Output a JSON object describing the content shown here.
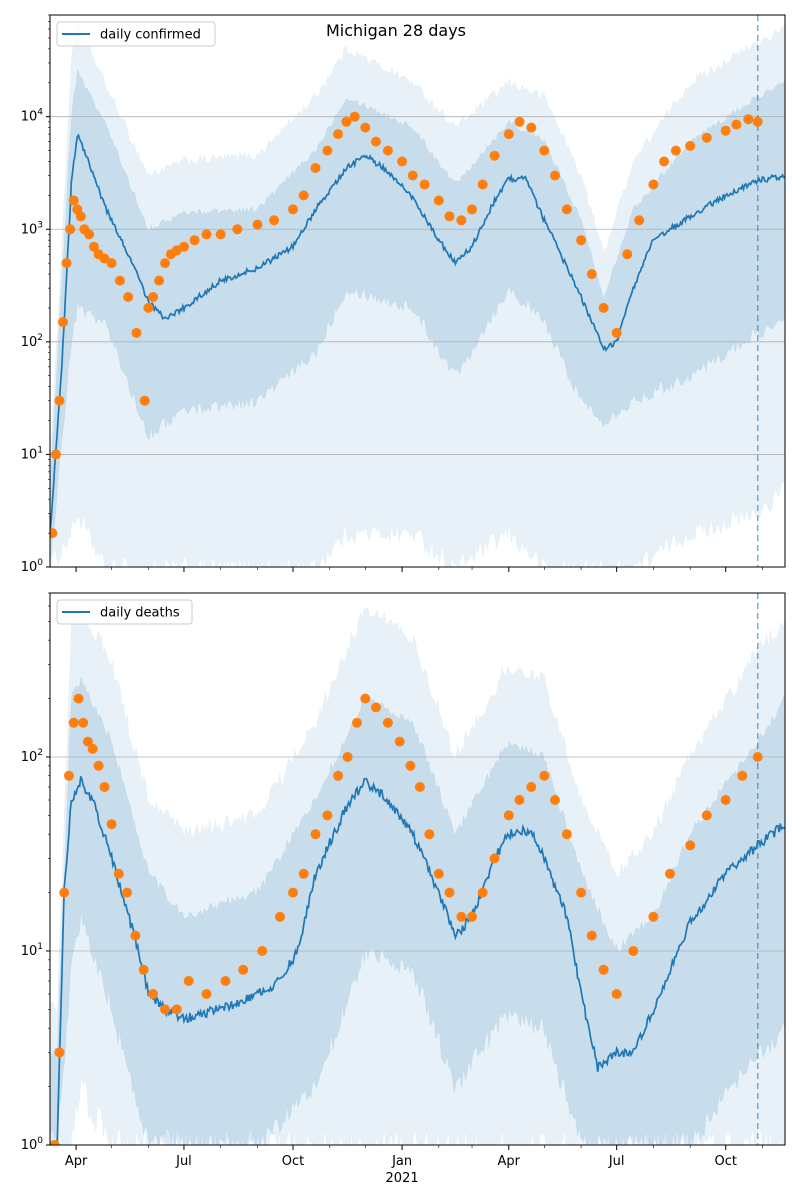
{
  "chart_data": [
    {
      "type": "line",
      "title": "Michigan 28 days",
      "legend": {
        "label": "daily confirmed",
        "placement": "top-left"
      },
      "yscale": "log",
      "ylim": [
        1,
        80000
      ],
      "xlim": [
        "2020-03-10",
        "2021-11-20"
      ],
      "grid": "y-major",
      "yticks": [
        {
          "v": 1,
          "label": "10^0"
        },
        {
          "v": 10,
          "label": "10^1"
        },
        {
          "v": 100,
          "label": "10^2"
        },
        {
          "v": 1000,
          "label": "10^3"
        },
        {
          "v": 10000,
          "label": "10^4"
        }
      ],
      "xticks": [],
      "forecast_start": "2021-10-28",
      "colors": {
        "line": "#1f77b4",
        "points": "#ff7f0e",
        "band": "#1f77b4"
      },
      "model_line": {
        "x": [
          "2020-03-10",
          "2020-03-20",
          "2020-03-28",
          "2020-04-02",
          "2020-04-10",
          "2020-04-25",
          "2020-05-15",
          "2020-06-01",
          "2020-06-15",
          "2020-07-01",
          "2020-08-01",
          "2020-09-01",
          "2020-10-01",
          "2020-10-20",
          "2020-11-15",
          "2020-12-01",
          "2020-12-20",
          "2021-01-10",
          "2021-02-01",
          "2021-02-15",
          "2021-03-01",
          "2021-03-20",
          "2021-04-01",
          "2021-04-15",
          "2021-05-01",
          "2021-06-01",
          "2021-06-20",
          "2021-07-01",
          "2021-07-15",
          "2021-08-01",
          "2021-09-01",
          "2021-10-01",
          "2021-10-28",
          "2021-11-20"
        ],
        "y": [
          2,
          60,
          2500,
          7000,
          4500,
          1600,
          600,
          230,
          160,
          200,
          350,
          450,
          700,
          1500,
          3500,
          4500,
          3300,
          1900,
          800,
          500,
          700,
          1800,
          2800,
          2800,
          1200,
          250,
          85,
          100,
          300,
          800,
          1300,
          2000,
          2700,
          3000
        ]
      },
      "band_inner": {
        "x": [
          "2020-03-10",
          "2020-03-28",
          "2020-04-02",
          "2020-04-25",
          "2020-06-01",
          "2020-07-01",
          "2020-09-01",
          "2020-10-20",
          "2020-11-15",
          "2021-01-10",
          "2021-02-15",
          "2021-04-01",
          "2021-05-01",
          "2021-06-01",
          "2021-06-20",
          "2021-07-15",
          "2021-09-01",
          "2021-10-28",
          "2021-11-20"
        ],
        "lower": [
          1,
          100,
          200,
          150,
          15,
          25,
          30,
          80,
          300,
          200,
          50,
          300,
          150,
          30,
          20,
          30,
          50,
          120,
          150
        ],
        "upper": [
          5,
          10000,
          25000,
          9000,
          1000,
          1400,
          1500,
          5000,
          15000,
          8000,
          2500,
          9000,
          6000,
          1200,
          250,
          1500,
          6000,
          15000,
          20000
        ]
      },
      "band_outer": {
        "x": [
          "2020-03-10",
          "2020-03-28",
          "2020-04-02",
          "2020-04-25",
          "2020-06-01",
          "2020-07-01",
          "2020-09-01",
          "2020-10-20",
          "2020-11-15",
          "2021-01-10",
          "2021-02-15",
          "2021-04-01",
          "2021-05-01",
          "2021-06-01",
          "2021-06-20",
          "2021-07-15",
          "2021-09-01",
          "2021-10-28",
          "2021-11-20"
        ],
        "lower": [
          1,
          2,
          3,
          1,
          1,
          1,
          1,
          1,
          2,
          2,
          1,
          2,
          1,
          1,
          1,
          1,
          2,
          3,
          5
        ],
        "upper": [
          8,
          30000,
          70000,
          20000,
          3000,
          4000,
          4500,
          15000,
          40000,
          20000,
          8000,
          20000,
          15000,
          3000,
          600,
          4000,
          20000,
          45000,
          60000
        ]
      },
      "observed": {
        "x": [
          "2020-03-12",
          "2020-03-15",
          "2020-03-18",
          "2020-03-21",
          "2020-03-24",
          "2020-03-27",
          "2020-03-30",
          "2020-04-02",
          "2020-04-05",
          "2020-04-08",
          "2020-04-12",
          "2020-04-16",
          "2020-04-20",
          "2020-04-25",
          "2020-05-01",
          "2020-05-08",
          "2020-05-15",
          "2020-05-22",
          "2020-05-29",
          "2020-06-01",
          "2020-06-05",
          "2020-06-10",
          "2020-06-15",
          "2020-06-20",
          "2020-06-25",
          "2020-07-01",
          "2020-07-10",
          "2020-07-20",
          "2020-08-01",
          "2020-08-15",
          "2020-09-01",
          "2020-09-15",
          "2020-10-01",
          "2020-10-10",
          "2020-10-20",
          "2020-10-30",
          "2020-11-08",
          "2020-11-15",
          "2020-11-22",
          "2020-12-01",
          "2020-12-10",
          "2020-12-20",
          "2021-01-01",
          "2021-01-10",
          "2021-01-20",
          "2021-02-01",
          "2021-02-10",
          "2021-02-20",
          "2021-03-01",
          "2021-03-10",
          "2021-03-20",
          "2021-04-01",
          "2021-04-10",
          "2021-04-20",
          "2021-05-01",
          "2021-05-10",
          "2021-05-20",
          "2021-06-01",
          "2021-06-10",
          "2021-06-20",
          "2021-07-01",
          "2021-07-10",
          "2021-07-20",
          "2021-08-01",
          "2021-08-10",
          "2021-08-20",
          "2021-09-01",
          "2021-09-15",
          "2021-10-01",
          "2021-10-10",
          "2021-10-20",
          "2021-10-28"
        ],
        "y": [
          2,
          10,
          30,
          150,
          500,
          1000,
          1800,
          1500,
          1300,
          1000,
          900,
          700,
          600,
          550,
          500,
          350,
          250,
          120,
          30,
          200,
          250,
          350,
          500,
          600,
          650,
          700,
          800,
          900,
          900,
          1000,
          1100,
          1200,
          1500,
          2000,
          3500,
          5000,
          7000,
          9000,
          10000,
          8000,
          6000,
          5000,
          4000,
          3000,
          2500,
          1800,
          1300,
          1200,
          1500,
          2500,
          4500,
          7000,
          9000,
          8000,
          5000,
          3000,
          1500,
          800,
          400,
          200,
          120,
          600,
          1200,
          2500,
          4000,
          5000,
          5500,
          6500,
          7500,
          8500,
          9500,
          9000
        ]
      }
    },
    {
      "type": "line",
      "legend": {
        "label": "daily deaths",
        "placement": "top-left"
      },
      "yscale": "log",
      "ylim": [
        1,
        700
      ],
      "xlim": [
        "2020-03-10",
        "2021-11-20"
      ],
      "grid": "y-major",
      "yticks": [
        {
          "v": 1,
          "label": "10^0"
        },
        {
          "v": 10,
          "label": "10^1"
        },
        {
          "v": 100,
          "label": "10^2"
        }
      ],
      "xticks": [
        {
          "date": "2020-04-01",
          "label": "Apr"
        },
        {
          "date": "2020-07-01",
          "label": "Jul"
        },
        {
          "date": "2020-10-01",
          "label": "Oct"
        },
        {
          "date": "2021-01-01",
          "label": "Jan",
          "sublabel": "2021"
        },
        {
          "date": "2021-04-01",
          "label": "Apr"
        },
        {
          "date": "2021-07-01",
          "label": "Jul"
        },
        {
          "date": "2021-10-01",
          "label": "Oct"
        }
      ],
      "forecast_start": "2021-10-28",
      "colors": {
        "line": "#1f77b4",
        "points": "#ff7f0e",
        "band": "#1f77b4"
      },
      "model_line": {
        "x": [
          "2020-03-16",
          "2020-03-22",
          "2020-03-28",
          "2020-04-05",
          "2020-04-15",
          "2020-05-01",
          "2020-05-20",
          "2020-06-01",
          "2020-06-15",
          "2020-07-01",
          "2020-08-01",
          "2020-09-01",
          "2020-09-20",
          "2020-10-05",
          "2020-10-20",
          "2020-11-15",
          "2020-12-01",
          "2020-12-20",
          "2021-01-10",
          "2021-02-01",
          "2021-02-15",
          "2021-03-01",
          "2021-03-20",
          "2021-04-01",
          "2021-04-20",
          "2021-05-01",
          "2021-05-20",
          "2021-06-01",
          "2021-06-15",
          "2021-07-01",
          "2021-07-15",
          "2021-08-01",
          "2021-08-15",
          "2021-09-01",
          "2021-10-01",
          "2021-10-28",
          "2021-11-20"
        ],
        "y": [
          1,
          20,
          60,
          75,
          60,
          30,
          12,
          6,
          5,
          4.5,
          5,
          6,
          7,
          10,
          25,
          55,
          75,
          60,
          40,
          20,
          12,
          15,
          30,
          40,
          42,
          30,
          15,
          6,
          2.5,
          3,
          3,
          5,
          8,
          14,
          25,
          35,
          45
        ]
      },
      "band_inner": {
        "x": [
          "2020-03-16",
          "2020-03-28",
          "2020-04-05",
          "2020-05-01",
          "2020-06-01",
          "2020-07-01",
          "2020-09-01",
          "2020-10-20",
          "2020-12-01",
          "2021-01-10",
          "2021-02-15",
          "2021-04-01",
          "2021-05-01",
          "2021-06-01",
          "2021-07-01",
          "2021-08-01",
          "2021-09-01",
          "2021-10-28",
          "2021-11-20"
        ],
        "lower": [
          1,
          8,
          15,
          5,
          1,
          1,
          1,
          2,
          10,
          8,
          2,
          5,
          4,
          1,
          1,
          1,
          1,
          3,
          4
        ],
        "upper": [
          3,
          200,
          250,
          120,
          25,
          15,
          20,
          60,
          200,
          150,
          40,
          120,
          100,
          25,
          10,
          15,
          40,
          120,
          200
        ]
      },
      "band_outer": {
        "x": [
          "2020-03-16",
          "2020-03-28",
          "2020-04-05",
          "2020-05-01",
          "2020-06-01",
          "2020-07-01",
          "2020-09-01",
          "2020-10-20",
          "2020-12-01",
          "2021-01-10",
          "2021-02-15",
          "2021-04-01",
          "2021-05-01",
          "2021-06-01",
          "2021-07-01",
          "2021-08-01",
          "2021-09-01",
          "2021-10-28",
          "2021-11-20"
        ],
        "lower": [
          1,
          1,
          2,
          1,
          1,
          1,
          1,
          1,
          1,
          1,
          1,
          1,
          1,
          1,
          1,
          1,
          1,
          1,
          1
        ],
        "upper": [
          5,
          500,
          600,
          300,
          60,
          40,
          50,
          150,
          600,
          400,
          100,
          300,
          250,
          60,
          25,
          40,
          100,
          350,
          500
        ]
      },
      "observed": {
        "x": [
          "2020-03-14",
          "2020-03-18",
          "2020-03-22",
          "2020-03-26",
          "2020-03-30",
          "2020-04-03",
          "2020-04-07",
          "2020-04-11",
          "2020-04-15",
          "2020-04-20",
          "2020-04-25",
          "2020-05-01",
          "2020-05-07",
          "2020-05-14",
          "2020-05-21",
          "2020-05-28",
          "2020-06-05",
          "2020-06-15",
          "2020-06-25",
          "2020-07-05",
          "2020-07-20",
          "2020-08-05",
          "2020-08-20",
          "2020-09-05",
          "2020-09-20",
          "2020-10-01",
          "2020-10-10",
          "2020-10-20",
          "2020-10-30",
          "2020-11-08",
          "2020-11-16",
          "2020-11-24",
          "2020-12-01",
          "2020-12-10",
          "2020-12-20",
          "2020-12-30",
          "2021-01-08",
          "2021-01-16",
          "2021-01-24",
          "2021-02-01",
          "2021-02-10",
          "2021-02-20",
          "2021-03-01",
          "2021-03-10",
          "2021-03-20",
          "2021-04-01",
          "2021-04-10",
          "2021-04-20",
          "2021-05-01",
          "2021-05-10",
          "2021-05-20",
          "2021-06-01",
          "2021-06-10",
          "2021-06-20",
          "2021-07-01",
          "2021-07-15",
          "2021-08-01",
          "2021-08-15",
          "2021-09-01",
          "2021-09-15",
          "2021-10-01",
          "2021-10-15",
          "2021-10-28"
        ],
        "y": [
          1,
          3,
          20,
          80,
          150,
          200,
          150,
          120,
          110,
          90,
          70,
          45,
          25,
          20,
          12,
          8,
          6,
          5,
          5,
          7,
          6,
          7,
          8,
          10,
          15,
          20,
          25,
          40,
          50,
          80,
          100,
          150,
          200,
          180,
          150,
          120,
          90,
          70,
          40,
          25,
          20,
          15,
          15,
          20,
          30,
          50,
          60,
          70,
          80,
          60,
          40,
          20,
          12,
          8,
          6,
          10,
          15,
          25,
          35,
          50,
          60,
          80,
          100
        ]
      }
    }
  ]
}
